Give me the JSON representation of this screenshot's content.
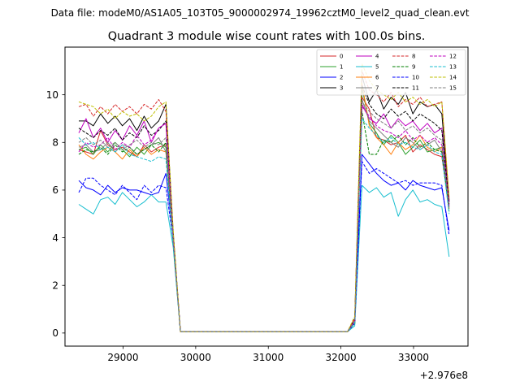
{
  "chart_data": {
    "type": "line",
    "suptitle": "Data file: modeM0/AS1A05_103T05_9000002974_19962cztM0_level2_quad_clean.evt",
    "title": "Quadrant 3 module wise count rates with 100.0s bins.",
    "xlabel": "",
    "ylabel": "",
    "x_offset_label": "+2.976e8",
    "xlim": [
      28200,
      33750
    ],
    "ylim": [
      -0.55,
      12.0
    ],
    "x_ticks": [
      29000,
      30000,
      31000,
      32000,
      33000
    ],
    "y_ticks": [
      0,
      2,
      4,
      6,
      8,
      10
    ],
    "legend_position": "top-right",
    "x_segment_1": [
      28390,
      28490,
      28590,
      28690,
      28790,
      28890,
      28990,
      29090,
      29190,
      29290,
      29390,
      29490,
      29590,
      29690,
      29790
    ],
    "x_segment_2": [
      32090,
      32190,
      32290,
      32390,
      32490,
      32590,
      32690,
      32790,
      32890,
      32990,
      33090,
      33190,
      33290,
      33390,
      33490
    ],
    "series": [
      {
        "name": "0",
        "color": "#d62728",
        "dash": "solid",
        "seg1": [
          7.7,
          7.6,
          7.5,
          8.5,
          7.9,
          7.7,
          7.8,
          7.6,
          7.4,
          7.9,
          7.6,
          7.8,
          7.9,
          4.0,
          0.05
        ],
        "seg2": [
          0.05,
          0.4,
          9.9,
          9.4,
          8.2,
          8.1,
          7.9,
          8.0,
          8.3,
          7.6,
          7.9,
          7.7,
          7.5,
          7.4,
          5.3
        ]
      },
      {
        "name": "1",
        "color": "#2ca02c",
        "dash": "solid",
        "seg1": [
          7.7,
          7.8,
          7.5,
          7.9,
          7.6,
          8.0,
          7.7,
          7.4,
          7.8,
          7.5,
          7.9,
          8.0,
          7.8,
          3.7,
          0.05
        ],
        "seg2": [
          0.05,
          0.5,
          10.3,
          8.8,
          8.4,
          7.9,
          8.3,
          8.0,
          7.5,
          7.8,
          8.1,
          7.6,
          7.7,
          7.8,
          5.6
        ]
      },
      {
        "name": "2",
        "color": "#0000ff",
        "dash": "solid",
        "seg1": [
          6.4,
          6.1,
          6.0,
          5.8,
          6.2,
          5.9,
          6.1,
          6.0,
          6.0,
          5.9,
          5.8,
          5.9,
          6.7,
          4.0,
          0.05
        ],
        "seg2": [
          0.05,
          0.4,
          7.5,
          7.1,
          6.7,
          6.4,
          6.2,
          6.3,
          6.0,
          6.4,
          6.2,
          6.1,
          6.0,
          6.1,
          4.3
        ]
      },
      {
        "name": "3",
        "color": "#000000",
        "dash": "solid",
        "seg1": [
          8.9,
          8.9,
          8.7,
          9.2,
          8.8,
          9.1,
          8.7,
          9.0,
          8.5,
          9.1,
          8.6,
          8.9,
          9.6,
          4.2,
          0.05
        ],
        "seg2": [
          0.05,
          0.6,
          10.8,
          9.7,
          10.2,
          9.4,
          9.9,
          9.6,
          10.1,
          9.2,
          9.7,
          9.5,
          9.6,
          9.2,
          5.5
        ]
      },
      {
        "name": "4",
        "color": "#bf00bf",
        "dash": "solid",
        "seg1": [
          8.4,
          9.0,
          8.2,
          8.6,
          8.0,
          8.5,
          8.1,
          8.7,
          8.3,
          8.9,
          8.0,
          8.6,
          8.8,
          4.1,
          0.05
        ],
        "seg2": [
          0.05,
          0.5,
          9.6,
          9.0,
          8.8,
          9.2,
          8.6,
          9.0,
          8.7,
          8.9,
          8.5,
          8.8,
          8.4,
          8.6,
          5.5
        ]
      },
      {
        "name": "5",
        "color": "#17becf",
        "dash": "solid",
        "seg1": [
          5.4,
          5.2,
          5.0,
          5.6,
          5.7,
          5.4,
          5.9,
          5.6,
          5.3,
          5.5,
          5.8,
          5.5,
          5.5,
          3.6,
          0.05
        ],
        "seg2": [
          0.05,
          0.3,
          6.2,
          5.9,
          6.1,
          5.7,
          5.9,
          4.9,
          5.6,
          6.0,
          5.5,
          5.6,
          5.4,
          5.3,
          3.2
        ]
      },
      {
        "name": "6",
        "color": "#ff7f0e",
        "dash": "solid",
        "seg1": [
          7.9,
          7.5,
          7.3,
          7.6,
          7.8,
          7.6,
          7.3,
          7.7,
          7.4,
          7.8,
          7.5,
          7.7,
          7.6,
          3.8,
          0.05
        ],
        "seg2": [
          0.05,
          0.4,
          10.5,
          8.7,
          8.2,
          7.9,
          7.5,
          8.0,
          7.7,
          7.9,
          8.3,
          7.8,
          7.6,
          7.8,
          5.2
        ]
      },
      {
        "name": "7",
        "color": "#7f7f7f",
        "dash": "solid",
        "seg1": [
          7.8,
          7.9,
          7.6,
          7.7,
          8.0,
          7.6,
          7.9,
          7.8,
          7.5,
          7.7,
          7.9,
          8.2,
          7.6,
          3.9,
          0.05
        ],
        "seg2": [
          0.05,
          0.5,
          9.8,
          8.9,
          8.6,
          8.3,
          8.0,
          7.8,
          8.2,
          8.0,
          7.7,
          7.9,
          8.1,
          7.6,
          5.3
        ]
      },
      {
        "name": "8",
        "color": "#d62728",
        "dash": "dashed",
        "seg1": [
          9.5,
          9.6,
          9.1,
          9.5,
          9.2,
          9.6,
          9.3,
          9.5,
          9.2,
          9.6,
          9.4,
          9.8,
          9.3,
          4.2,
          0.05
        ],
        "seg2": [
          0.05,
          0.6,
          11.0,
          10.2,
          10.0,
          9.7,
          10.1,
          9.5,
          9.8,
          9.6,
          9.9,
          9.5,
          9.6,
          9.7,
          5.6
        ]
      },
      {
        "name": "9",
        "color": "#007f00",
        "dash": "dashed",
        "seg1": [
          7.5,
          7.7,
          7.6,
          7.8,
          7.5,
          7.9,
          7.6,
          7.8,
          7.5,
          7.7,
          7.9,
          7.6,
          8.0,
          3.8,
          0.05
        ],
        "seg2": [
          0.05,
          0.4,
          9.3,
          7.5,
          7.5,
          8.1,
          8.0,
          8.3,
          7.9,
          8.2,
          7.8,
          8.0,
          7.7,
          7.6,
          5.1
        ]
      },
      {
        "name": "10",
        "color": "#0000ff",
        "dash": "dashed",
        "seg1": [
          5.9,
          6.5,
          6.5,
          6.2,
          6.0,
          5.8,
          6.2,
          5.9,
          5.6,
          6.2,
          5.9,
          6.2,
          6.1,
          3.9,
          0.05
        ],
        "seg2": [
          0.05,
          0.4,
          7.2,
          6.7,
          6.9,
          6.7,
          6.5,
          6.3,
          6.4,
          6.2,
          6.3,
          6.3,
          6.3,
          6.2,
          4.1
        ]
      },
      {
        "name": "11",
        "color": "#000000",
        "dash": "dashed",
        "seg1": [
          8.6,
          8.4,
          8.2,
          8.5,
          8.3,
          8.6,
          8.1,
          8.4,
          8.2,
          8.7,
          8.3,
          8.5,
          8.9,
          4.0,
          0.05
        ],
        "seg2": [
          0.05,
          0.5,
          10.4,
          9.6,
          9.2,
          9.0,
          9.4,
          9.1,
          9.3,
          8.9,
          9.2,
          9.0,
          8.8,
          8.5,
          5.4
        ]
      },
      {
        "name": "12",
        "color": "#bf00bf",
        "dash": "dashed",
        "seg1": [
          7.6,
          8.0,
          7.8,
          7.9,
          8.2,
          7.7,
          8.0,
          7.8,
          8.3,
          7.9,
          8.1,
          8.6,
          8.8,
          3.9,
          0.05
        ],
        "seg2": [
          0.05,
          0.5,
          9.5,
          9.1,
          8.7,
          8.5,
          8.4,
          8.2,
          8.5,
          8.1,
          8.3,
          8.0,
          8.2,
          7.9,
          5.3
        ]
      },
      {
        "name": "13",
        "color": "#17becf",
        "dash": "dashed",
        "seg1": [
          8.2,
          7.9,
          8.0,
          7.7,
          7.8,
          7.6,
          7.9,
          7.5,
          7.4,
          7.3,
          7.2,
          7.4,
          7.3,
          3.7,
          0.05
        ],
        "seg2": [
          0.05,
          0.4,
          9.0,
          8.6,
          8.3,
          8.0,
          8.2,
          7.9,
          8.0,
          7.8,
          7.7,
          7.9,
          7.6,
          7.5,
          5.0
        ]
      },
      {
        "name": "14",
        "color": "#bfbf00",
        "dash": "dashed",
        "seg1": [
          9.7,
          9.6,
          9.5,
          9.2,
          9.4,
          9.0,
          9.3,
          9.1,
          9.2,
          8.9,
          9.1,
          9.5,
          9.7,
          4.3,
          0.05
        ],
        "seg2": [
          0.05,
          0.7,
          11.3,
          10.6,
          10.2,
          10.0,
          9.8,
          10.1,
          9.7,
          9.9,
          9.6,
          9.8,
          9.5,
          9.7,
          5.7
        ]
      },
      {
        "name": "15",
        "color": "#7f7f7f",
        "dash": "dashed",
        "seg1": [
          8.0,
          8.2,
          7.9,
          8.1,
          7.8,
          8.0,
          7.7,
          7.9,
          8.1,
          7.8,
          8.0,
          7.9,
          8.2,
          3.9,
          0.05
        ],
        "seg2": [
          0.05,
          0.5,
          9.7,
          9.3,
          9.0,
          8.8,
          8.6,
          8.9,
          8.5,
          8.7,
          8.4,
          8.6,
          8.3,
          8.1,
          5.2
        ]
      }
    ]
  }
}
